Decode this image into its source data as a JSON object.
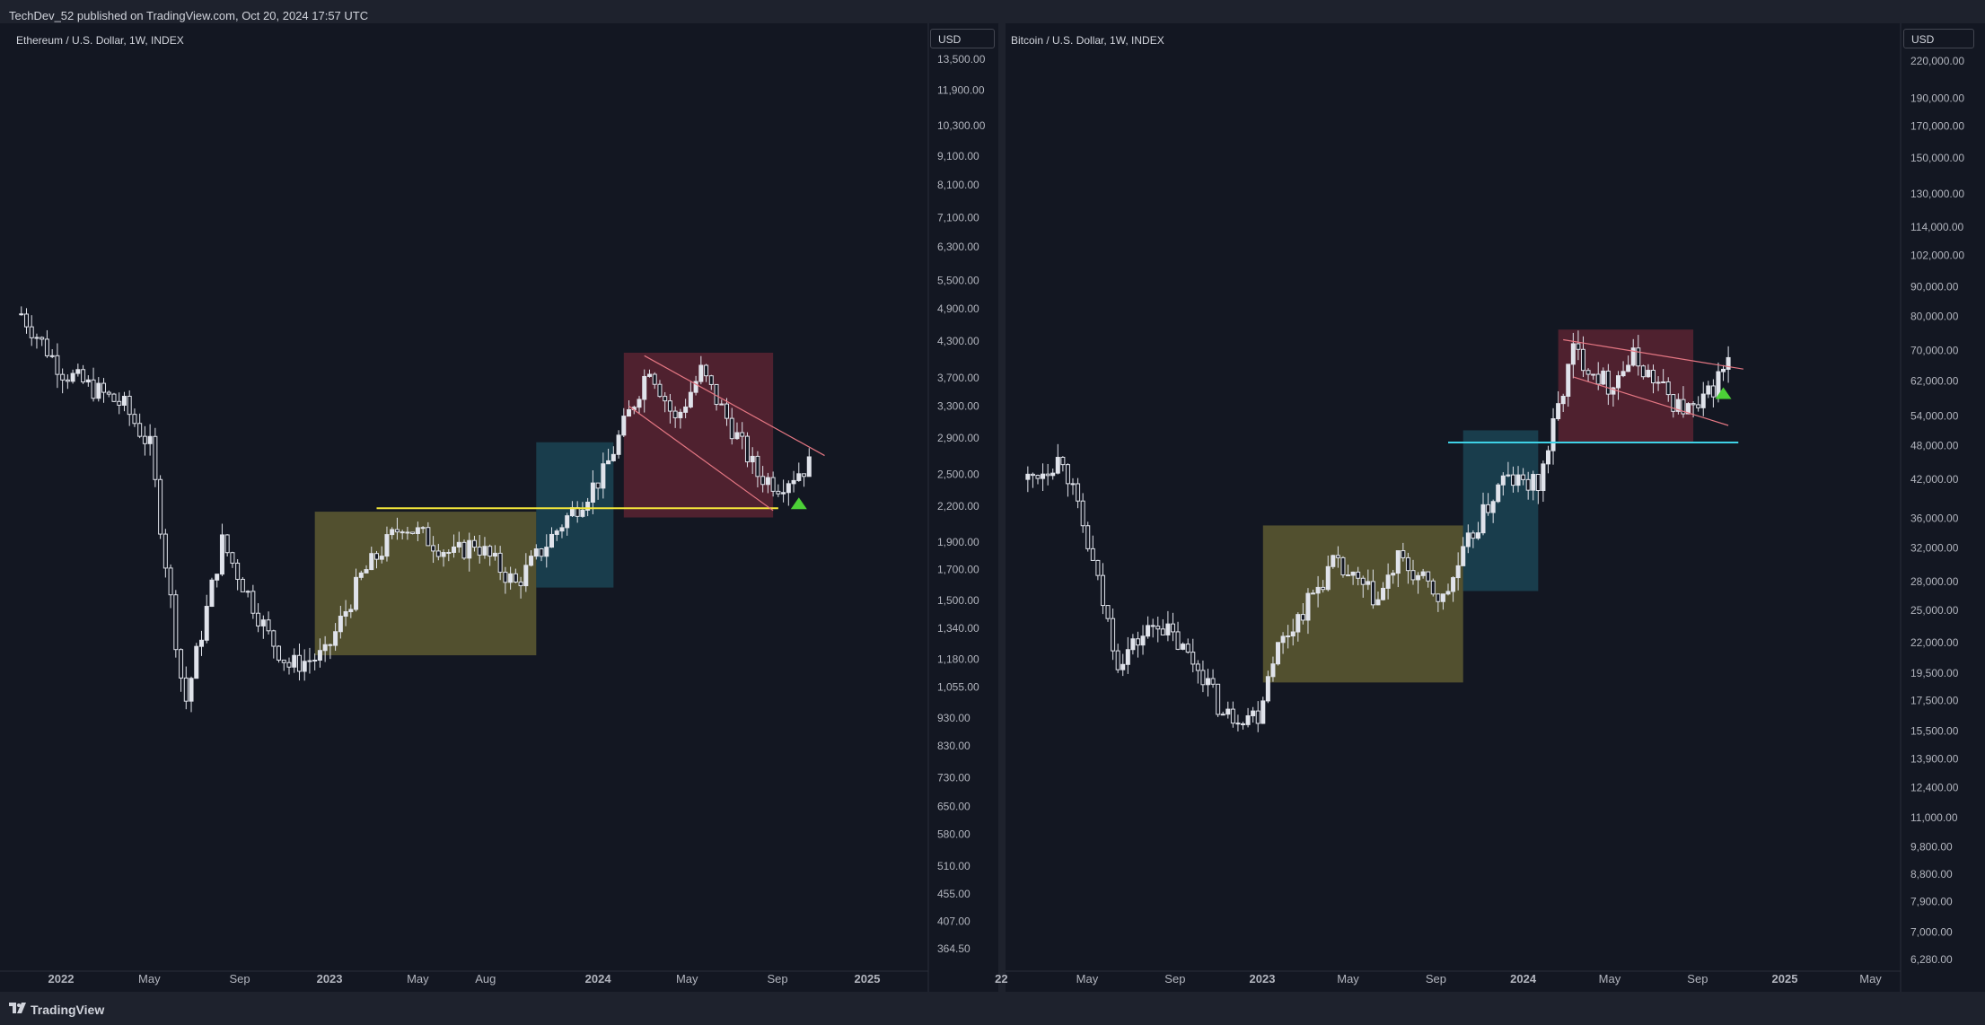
{
  "header": {
    "published_text": "TechDev_52 published on TradingView.com, Oct 20, 2024 17:57 UTC"
  },
  "footer": {
    "brand": "TradingView"
  },
  "colors": {
    "candle": "#e0e3eb",
    "zone_olive": "#7f7a38",
    "zone_teal": "#1e5a6a",
    "zone_maroon": "#7a2a38",
    "yellow_line": "#f5e83a",
    "cyan_line": "#3fd2e6",
    "pink_line": "#e57783",
    "arrow": "#4cd137"
  },
  "chart_data": [
    {
      "type": "candlestick",
      "title": "Ethereum / U.S. Dollar, 1W, INDEX",
      "currency": "USD",
      "scale": "log",
      "ylim": [
        364.5,
        13500
      ],
      "y_ticks": [
        "13,500.00",
        "11,900.00",
        "10,300.00",
        "9,100.00",
        "8,100.00",
        "7,100.00",
        "6,300.00",
        "5,500.00",
        "4,900.00",
        "4,300.00",
        "3,700.00",
        "3,300.00",
        "2,900.00",
        "2,500.00",
        "2,200.00",
        "1,900.00",
        "1,700.00",
        "1,500.00",
        "1,340.00",
        "1,180.00",
        "1,055.00",
        "930.00",
        "830.00",
        "730.00",
        "650.00",
        "580.00",
        "510.00",
        "455.00",
        "407.00",
        "364.50"
      ],
      "x_ticks": [
        "2022",
        "May",
        "Sep",
        "2023",
        "May",
        "Aug",
        "2024",
        "May",
        "Sep",
        "2025"
      ],
      "x_ticks_bold": [
        "2022",
        "2023",
        "2024",
        "2025"
      ],
      "series_key_points": [
        {
          "date": "2021-11-08",
          "value": 4800
        },
        {
          "date": "2022-01-03",
          "value": 3800
        },
        {
          "date": "2022-03-28",
          "value": 3300
        },
        {
          "date": "2022-05-02",
          "value": 2800
        },
        {
          "date": "2022-06-13",
          "value": 1100
        },
        {
          "date": "2022-06-20",
          "value": 1000
        },
        {
          "date": "2022-08-08",
          "value": 1900
        },
        {
          "date": "2022-10-10",
          "value": 1300
        },
        {
          "date": "2022-11-07",
          "value": 1150
        },
        {
          "date": "2022-12-26",
          "value": 1200
        },
        {
          "date": "2023-02-13",
          "value": 1650
        },
        {
          "date": "2023-04-10",
          "value": 2050
        },
        {
          "date": "2023-06-19",
          "value": 1800
        },
        {
          "date": "2023-07-17",
          "value": 1900
        },
        {
          "date": "2023-09-11",
          "value": 1600
        },
        {
          "date": "2023-11-13",
          "value": 2050
        },
        {
          "date": "2024-01-08",
          "value": 2500
        },
        {
          "date": "2024-03-11",
          "value": 3900
        },
        {
          "date": "2024-04-15",
          "value": 3100
        },
        {
          "date": "2024-05-20",
          "value": 3800
        },
        {
          "date": "2024-08-05",
          "value": 2500
        },
        {
          "date": "2024-09-02",
          "value": 2400
        },
        {
          "date": "2024-10-14",
          "value": 2600
        }
      ],
      "annotations": {
        "boxes": [
          {
            "color": "olive",
            "from": "2022-12-12",
            "to": "2023-10-09",
            "low": 1200,
            "high": 2150
          },
          {
            "color": "teal",
            "from": "2023-10-09",
            "to": "2024-01-22",
            "low": 1580,
            "high": 2850
          },
          {
            "color": "maroon",
            "from": "2024-02-05",
            "to": "2024-08-26",
            "low": 2100,
            "high": 4100
          }
        ],
        "hlines": [
          {
            "color": "yellow",
            "value": 2180,
            "from": "2023-03-06",
            "to": "2024-09-02"
          }
        ],
        "channel": [
          {
            "from": [
              "2024-03-04",
              4050
            ],
            "to": [
              "2024-11-04",
              2700
            ]
          },
          {
            "from": [
              "2024-02-12",
              3300
            ],
            "to": [
              "2024-08-26",
              2160
            ]
          }
        ],
        "arrow": {
          "date": "2024-09-30",
          "value": 2220
        }
      }
    },
    {
      "type": "candlestick",
      "title": "Bitcoin / U.S. Dollar, 1W, INDEX",
      "currency": "USD",
      "scale": "log",
      "ylim": [
        6280,
        220000
      ],
      "y_ticks": [
        "220,000.00",
        "190,000.00",
        "170,000.00",
        "150,000.00",
        "130,000.00",
        "114,000.00",
        "102,000.00",
        "90,000.00",
        "80,000.00",
        "70,000.00",
        "62,000.00",
        "54,000.00",
        "48,000.00",
        "42,000.00",
        "36,000.00",
        "32,000.00",
        "28,000.00",
        "25,000.00",
        "22,000.00",
        "19,500.00",
        "17,500.00",
        "15,500.00",
        "13,900.00",
        "12,400.00",
        "11,000.00",
        "9,800.00",
        "8,800.00",
        "7,900.00",
        "7,000.00",
        "6,280.00"
      ],
      "x_ticks": [
        "22",
        "May",
        "Sep",
        "2023",
        "May",
        "Sep",
        "2024",
        "May",
        "Sep",
        "2025",
        "May"
      ],
      "x_ticks_bold": [
        "22",
        "2023",
        "2024",
        "2025"
      ],
      "series_key_points": [
        {
          "date": "2022-02-07",
          "value": 42000
        },
        {
          "date": "2022-03-28",
          "value": 46000
        },
        {
          "date": "2022-05-09",
          "value": 30000
        },
        {
          "date": "2022-06-13",
          "value": 20500
        },
        {
          "date": "2022-08-08",
          "value": 24000
        },
        {
          "date": "2022-10-10",
          "value": 19500
        },
        {
          "date": "2022-11-07",
          "value": 16500
        },
        {
          "date": "2022-12-26",
          "value": 16600
        },
        {
          "date": "2023-01-16",
          "value": 21000
        },
        {
          "date": "2023-04-10",
          "value": 30000
        },
        {
          "date": "2023-06-12",
          "value": 26000
        },
        {
          "date": "2023-07-10",
          "value": 30500
        },
        {
          "date": "2023-09-11",
          "value": 26000
        },
        {
          "date": "2023-10-23",
          "value": 34000
        },
        {
          "date": "2023-12-04",
          "value": 42000
        },
        {
          "date": "2024-01-22",
          "value": 41000
        },
        {
          "date": "2024-03-11",
          "value": 70000
        },
        {
          "date": "2024-04-29",
          "value": 61000
        },
        {
          "date": "2024-06-03",
          "value": 68000
        },
        {
          "date": "2024-08-05",
          "value": 56000
        },
        {
          "date": "2024-09-02",
          "value": 55000
        },
        {
          "date": "2024-10-14",
          "value": 67000
        }
      ],
      "annotations": {
        "boxes": [
          {
            "color": "olive",
            "from": "2023-01-02",
            "to": "2023-10-09",
            "low": 18800,
            "high": 35000
          },
          {
            "color": "teal",
            "from": "2023-10-09",
            "to": "2024-01-22",
            "low": 27000,
            "high": 51000
          },
          {
            "color": "maroon",
            "from": "2024-02-19",
            "to": "2024-08-26",
            "low": 48700,
            "high": 76000
          }
        ],
        "hlines": [
          {
            "color": "cyan",
            "value": 48600,
            "from": "2023-09-18",
            "to": "2024-10-28"
          }
        ],
        "channel": [
          {
            "from": [
              "2024-02-26",
              73000
            ],
            "to": [
              "2024-11-04",
              65000
            ]
          },
          {
            "from": [
              "2024-03-11",
              63000
            ],
            "to": [
              "2024-10-14",
              52000
            ]
          }
        ],
        "arrow": {
          "date": "2024-10-07",
          "value": 59000
        }
      }
    }
  ]
}
